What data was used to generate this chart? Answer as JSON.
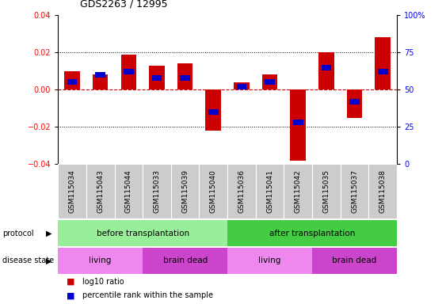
{
  "title": "GDS2263 / 12995",
  "samples": [
    "GSM115034",
    "GSM115043",
    "GSM115044",
    "GSM115033",
    "GSM115039",
    "GSM115040",
    "GSM115036",
    "GSM115041",
    "GSM115042",
    "GSM115035",
    "GSM115037",
    "GSM115038"
  ],
  "log10_ratio": [
    0.01,
    0.008,
    0.019,
    0.013,
    0.014,
    -0.022,
    0.004,
    0.008,
    -0.038,
    0.02,
    -0.015,
    0.028
  ],
  "percentile_rank": [
    55,
    60,
    62,
    58,
    58,
    35,
    52,
    55,
    28,
    65,
    42,
    62
  ],
  "bar_color_red": "#cc0000",
  "bar_color_blue": "#0000cc",
  "zero_line_color": "#cc0000",
  "ylim": [
    -0.04,
    0.04
  ],
  "yticks_left": [
    -0.04,
    -0.02,
    0.0,
    0.02,
    0.04
  ],
  "protocol_groups": [
    {
      "label": "before transplantation",
      "start": 0,
      "end": 6,
      "color": "#99ee99"
    },
    {
      "label": "after transplantation",
      "start": 6,
      "end": 12,
      "color": "#44cc44"
    }
  ],
  "disease_groups": [
    {
      "label": "living",
      "start": 0,
      "end": 3,
      "color": "#ee88ee"
    },
    {
      "label": "brain dead",
      "start": 3,
      "end": 6,
      "color": "#cc44cc"
    },
    {
      "label": "living",
      "start": 6,
      "end": 9,
      "color": "#ee88ee"
    },
    {
      "label": "brain dead",
      "start": 9,
      "end": 12,
      "color": "#cc44cc"
    }
  ],
  "legend_red_label": "log10 ratio",
  "legend_blue_label": "percentile rank within the sample",
  "tick_label_area_color": "#cccccc",
  "bar_width": 0.55
}
